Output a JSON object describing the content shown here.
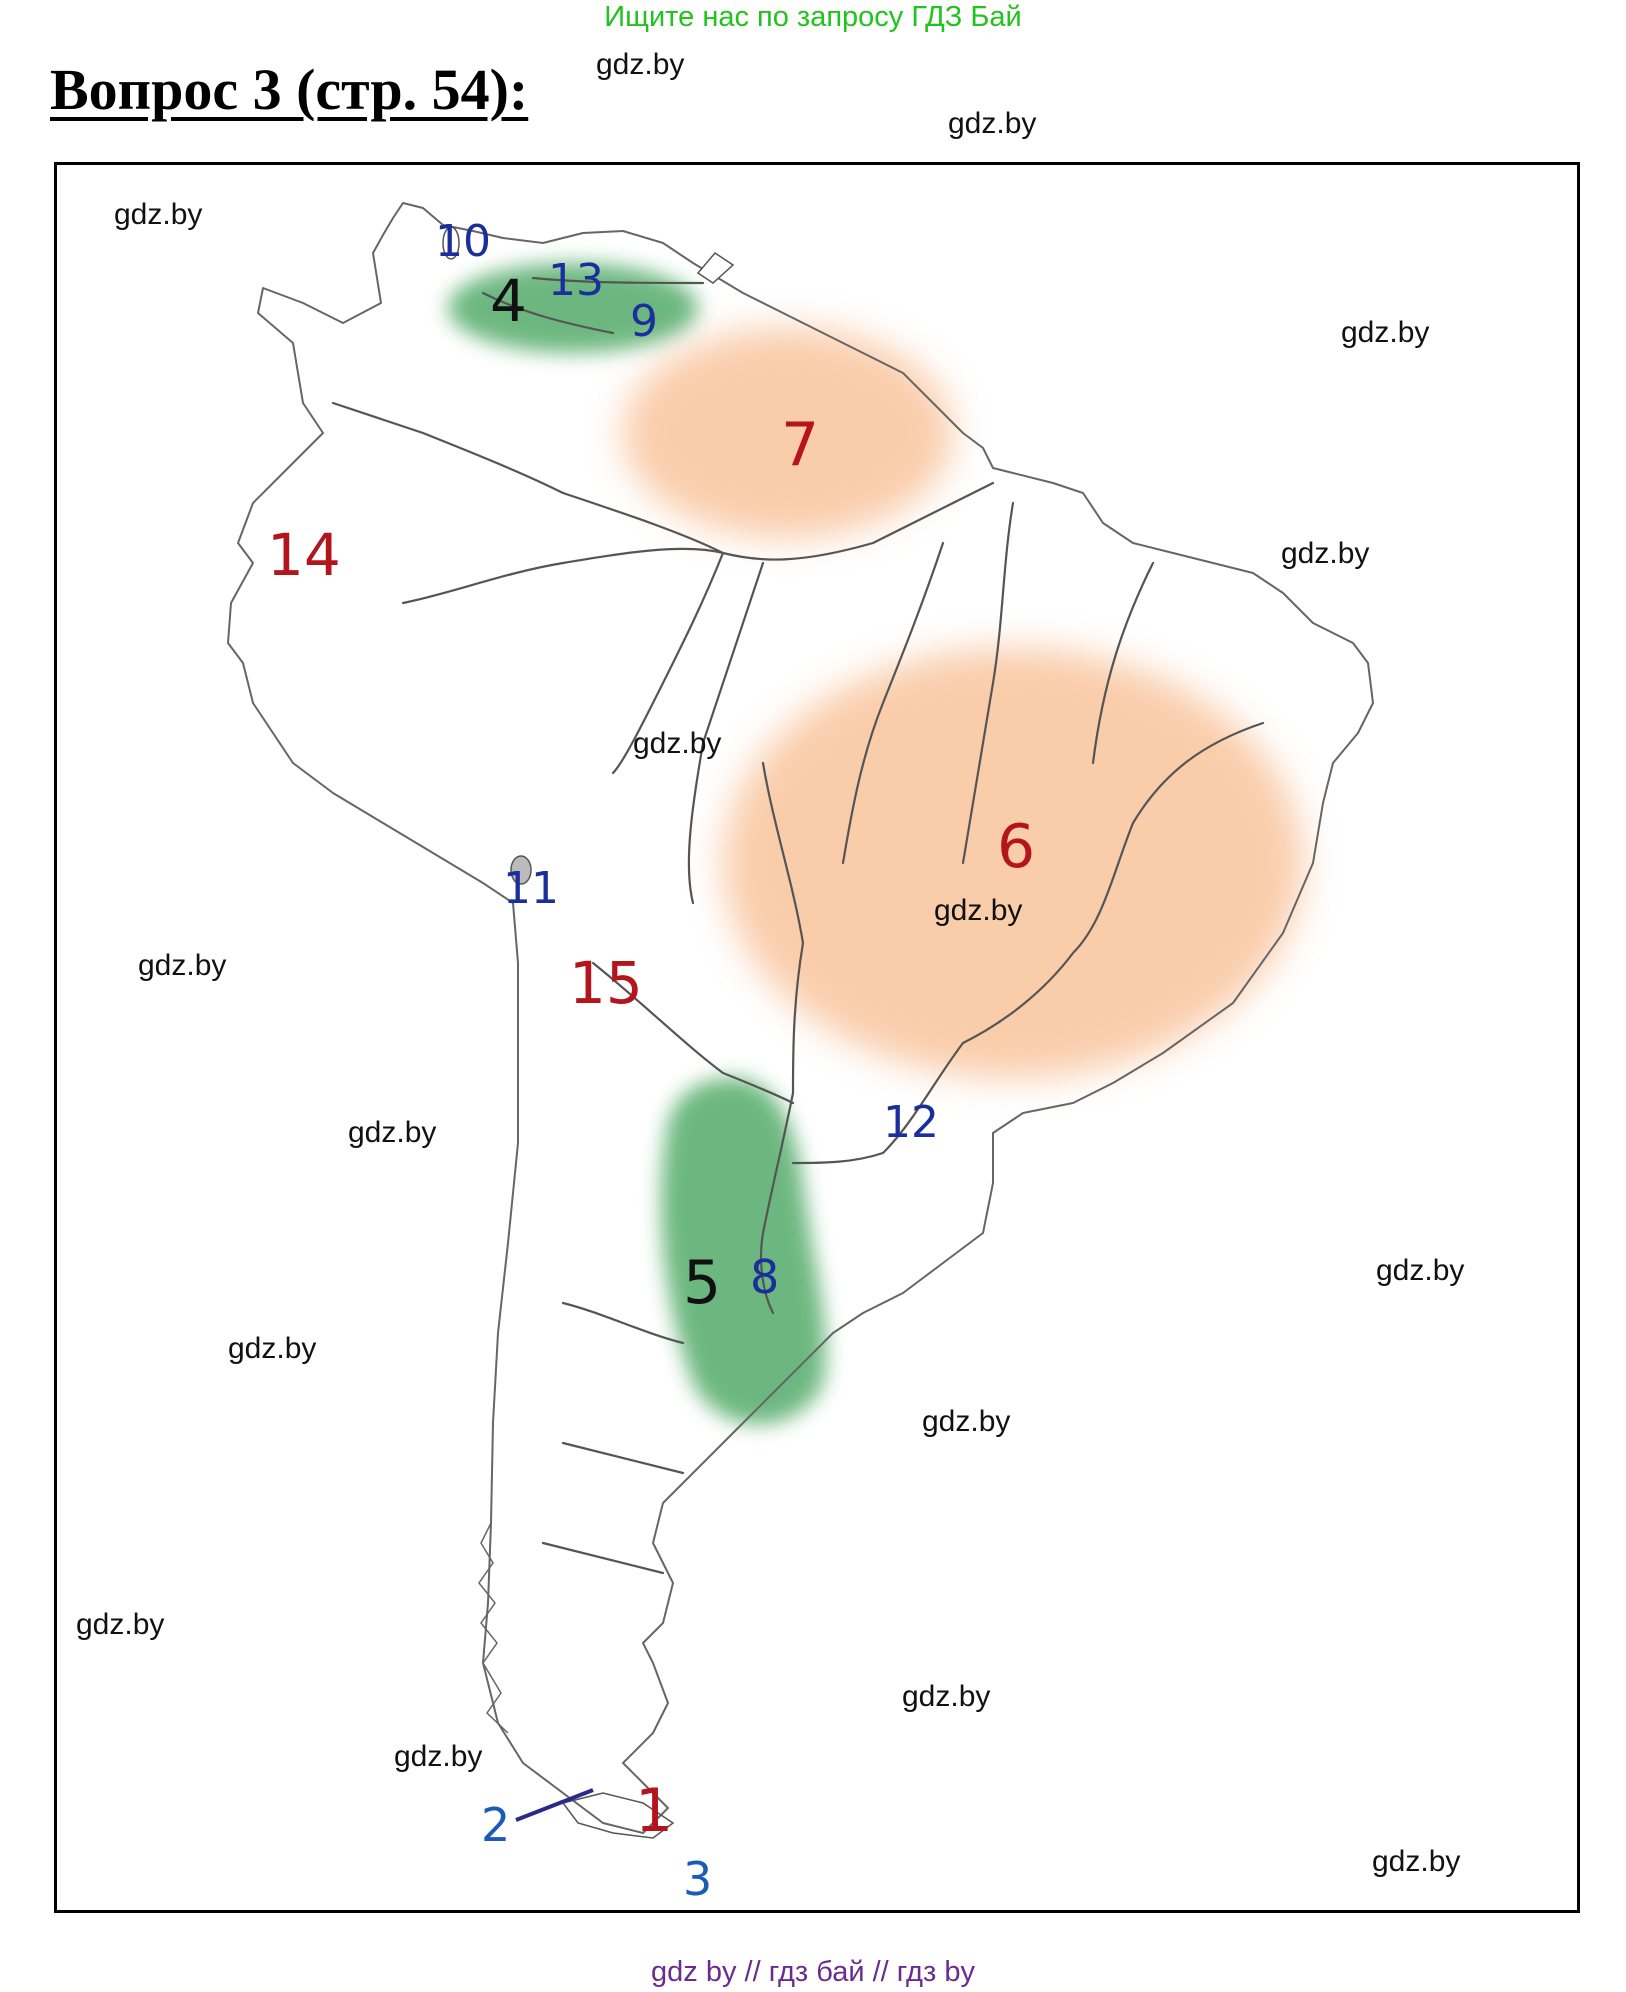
{
  "promo_text": "Ищите нас по запросу ГДЗ Бай",
  "title": "Вопрос 3 (стр. 54):",
  "watermark": "gdz.by",
  "footer": "gdz by  //  гдз бай  //  гдз by",
  "colors": {
    "promo": "#22c21f",
    "plateau_orange": "#f8b98a",
    "lowland_green": "#2e9a48",
    "label_red": "#b4141c",
    "label_blue": "#1a2e9c",
    "label_black": "#111111",
    "footer": "#6a2c8e"
  },
  "map": {
    "labels": {
      "n1": "1",
      "n2": "2",
      "n3": "3",
      "n4": "4",
      "n5": "5",
      "n6": "6",
      "n7": "7",
      "n8": "8",
      "n9": "9",
      "n10": "10",
      "n11": "11",
      "n12": "12",
      "n13": "13",
      "n14": "14",
      "n15": "15"
    }
  }
}
